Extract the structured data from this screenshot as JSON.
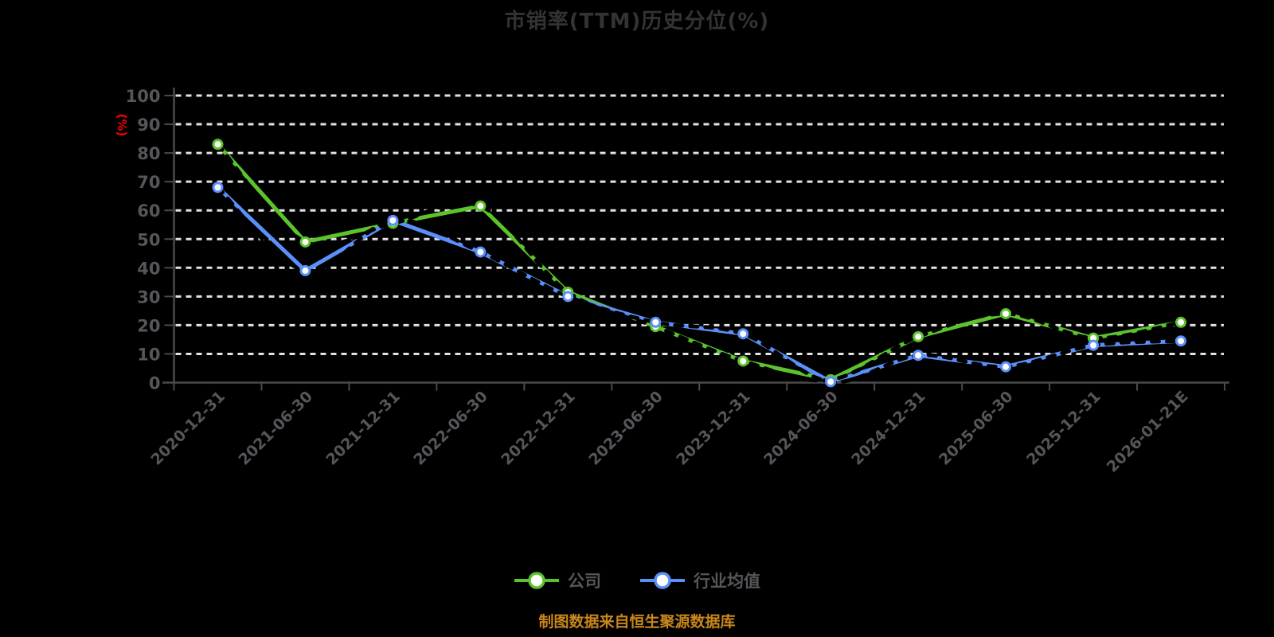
{
  "page": {
    "background": "#000000"
  },
  "header": {
    "title": "市销率(TTM)历史分位(%)"
  },
  "chart_data": {
    "type": "line",
    "title": "市销率(TTM)历史分位(%)",
    "xlabel": "",
    "ylabel": "(%)",
    "ylabel_color": "#ff0000",
    "ylim": [
      0,
      100
    ],
    "ytick_step": 10,
    "grid": "horizontal-dashed-white",
    "legend_position": "bottom",
    "categories": [
      "2020-12-31",
      "2021-06-30",
      "2021-12-31",
      "2022-06-30",
      "2022-12-31",
      "2023-06-30",
      "2023-12-31",
      "2024-06-30",
      "2024-12-31",
      "2025-06-30",
      "2025-12-31",
      "2026-01-21E"
    ],
    "series": [
      {
        "name": "公司",
        "color": "#5bc42c",
        "marker": "white-filled-circle",
        "values": [
          83,
          49,
          55.5,
          61.5,
          31.5,
          19.5,
          7.5,
          1,
          16,
          24,
          15.5,
          21
        ]
      },
      {
        "name": "行业均值",
        "color": "#5b8ff9",
        "marker": "white-filled-circle",
        "values": [
          68,
          39,
          56.5,
          45.5,
          30,
          21,
          17,
          0.3,
          9.5,
          5.5,
          13,
          14.5
        ]
      }
    ]
  },
  "legend": {
    "items": [
      {
        "label": "公司",
        "color": "#5bc42c"
      },
      {
        "label": "行业均值",
        "color": "#5b8ff9"
      }
    ]
  },
  "axis": {
    "label_color": "#55565a",
    "line_color": "#4a4a4a",
    "grid_color": "#e2e2e2"
  },
  "footer": {
    "source_note": "制图数据来自恒生聚源数据库",
    "color": "#c8861b"
  }
}
